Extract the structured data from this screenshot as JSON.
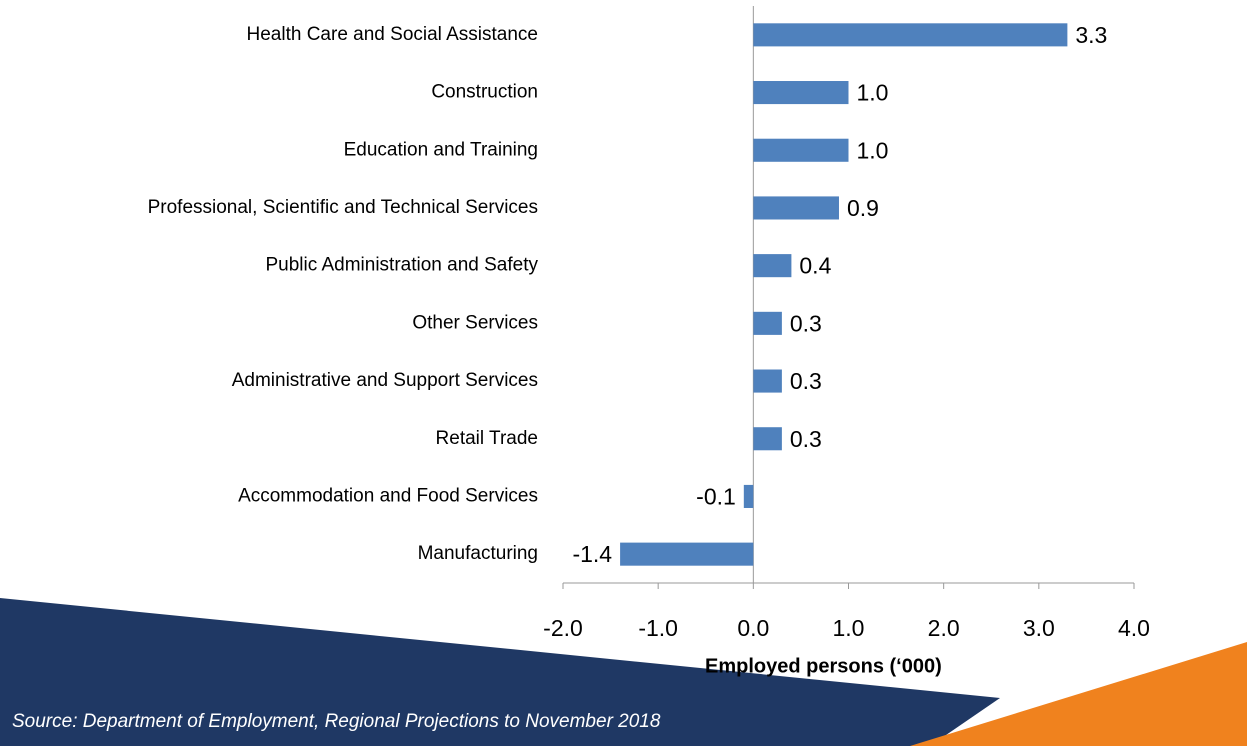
{
  "chart_data": {
    "type": "bar",
    "orientation": "horizontal",
    "categories": [
      "Health Care and Social Assistance",
      "Construction",
      "Education and Training",
      "Professional, Scientific and Technical Services",
      "Public Administration and Safety",
      "Other Services",
      "Administrative and Support Services",
      "Retail Trade",
      "Accommodation and Food Services",
      "Manufacturing"
    ],
    "values": [
      3.3,
      1.0,
      1.0,
      0.9,
      0.4,
      0.3,
      0.3,
      0.3,
      -0.1,
      -1.4
    ],
    "value_labels": [
      "3.3",
      "1.0",
      "1.0",
      "0.9",
      "0.4",
      "0.3",
      "0.3",
      "0.3",
      "-0.1",
      "-1.4"
    ],
    "color": "#4f81bd",
    "xlim": [
      -2.0,
      4.0
    ],
    "xticks": [
      {
        "value": -2,
        "label": "-2.0"
      },
      {
        "value": -1,
        "label": "-1.0"
      },
      {
        "value": 0,
        "label": "0.0"
      },
      {
        "value": 1,
        "label": "1.0"
      },
      {
        "value": 2,
        "label": "2.0"
      },
      {
        "value": 3,
        "label": "3.0"
      },
      {
        "value": 4,
        "label": "4.0"
      }
    ],
    "xlabel": "Employed persons (‘000)",
    "source": "Source: Department of Employment, Regional Projections to November 2018",
    "grid": false
  }
}
